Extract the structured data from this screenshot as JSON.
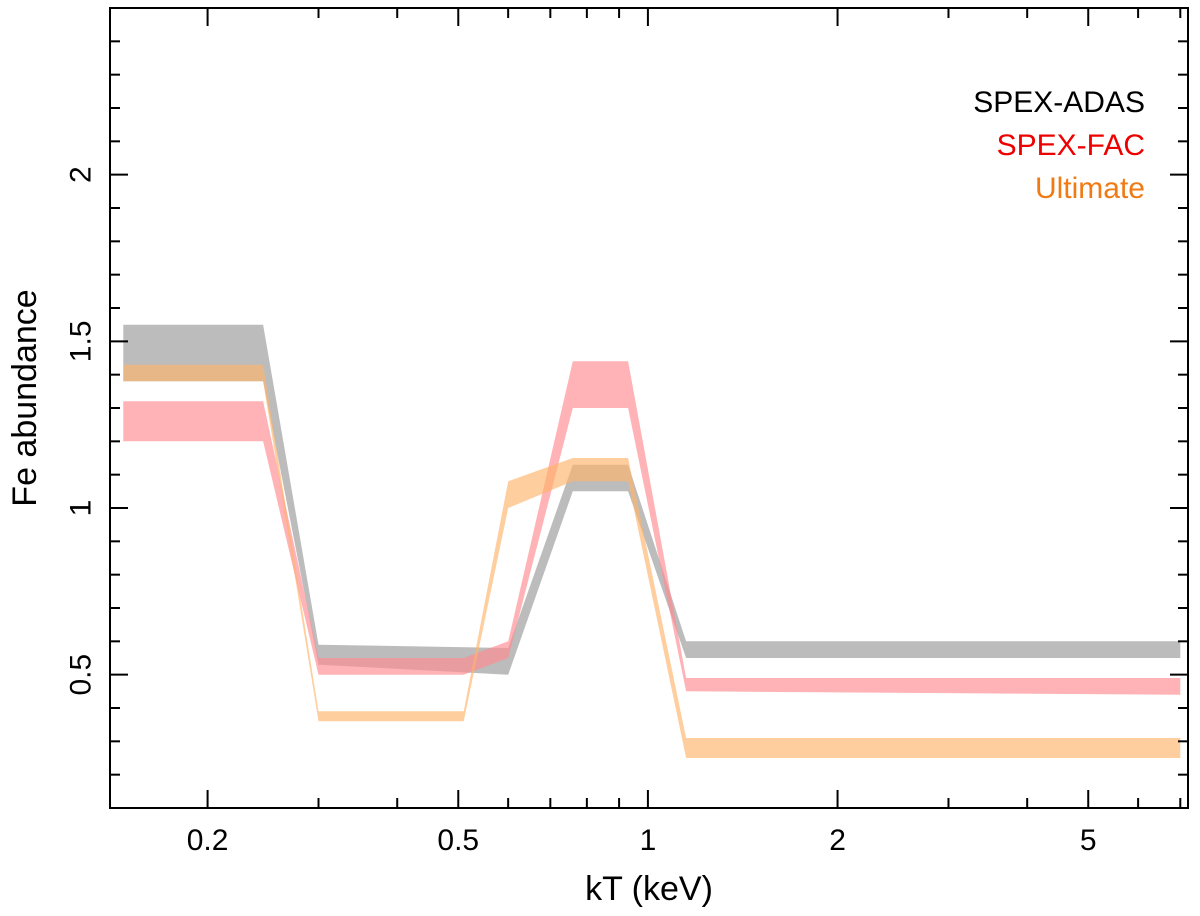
{
  "chart_data": {
    "type": "area",
    "xlabel": "kT (keV)",
    "ylabel": "Fe abundance",
    "xscale": "log",
    "xlim": [
      0.14,
      7.2
    ],
    "ylim": [
      0.1,
      2.5
    ],
    "xticks": [
      {
        "value": 0.2,
        "label": "0.2"
      },
      {
        "value": 0.5,
        "label": "0.5"
      },
      {
        "value": 1,
        "label": "1"
      },
      {
        "value": 2,
        "label": "2"
      },
      {
        "value": 5,
        "label": "5"
      }
    ],
    "yticks": [
      {
        "value": 0.5,
        "label": "0.5"
      },
      {
        "value": 1,
        "label": "1"
      },
      {
        "value": 1.5,
        "label": "1.5"
      },
      {
        "value": 2,
        "label": "2"
      }
    ],
    "legend_position": "top-right",
    "series": [
      {
        "name": "SPEX-ADAS",
        "text_color": "#000000",
        "fill": "#a6a6a6",
        "opacity": 0.75,
        "x": [
          0.147,
          0.245,
          0.3,
          0.6,
          0.76,
          0.93,
          1.15,
          7.0
        ],
        "lower": [
          1.38,
          1.38,
          0.53,
          0.5,
          1.05,
          1.05,
          0.55,
          0.55
        ],
        "upper": [
          1.55,
          1.55,
          0.59,
          0.58,
          1.13,
          1.13,
          0.6,
          0.6
        ]
      },
      {
        "name": "SPEX-FAC",
        "text_color": "#ee0000",
        "fill": "#ff8a8f",
        "opacity": 0.65,
        "x": [
          0.147,
          0.245,
          0.3,
          0.51,
          0.6,
          0.76,
          0.93,
          1.15,
          7.0
        ],
        "lower": [
          1.2,
          1.2,
          0.5,
          0.5,
          0.55,
          1.3,
          1.3,
          0.45,
          0.44
        ],
        "upper": [
          1.32,
          1.32,
          0.55,
          0.55,
          0.6,
          1.44,
          1.44,
          0.49,
          0.49
        ]
      },
      {
        "name": "Ultimate",
        "text_color": "#f07a14",
        "fill": "#ffb36b",
        "opacity": 0.65,
        "x": [
          0.147,
          0.245,
          0.3,
          0.51,
          0.6,
          0.76,
          0.93,
          1.15,
          7.0
        ],
        "lower": [
          1.38,
          1.38,
          0.36,
          0.36,
          1.0,
          1.08,
          1.08,
          0.25,
          0.25
        ],
        "upper": [
          1.43,
          1.43,
          0.39,
          0.39,
          1.08,
          1.15,
          1.15,
          0.31,
          0.31
        ]
      }
    ]
  }
}
